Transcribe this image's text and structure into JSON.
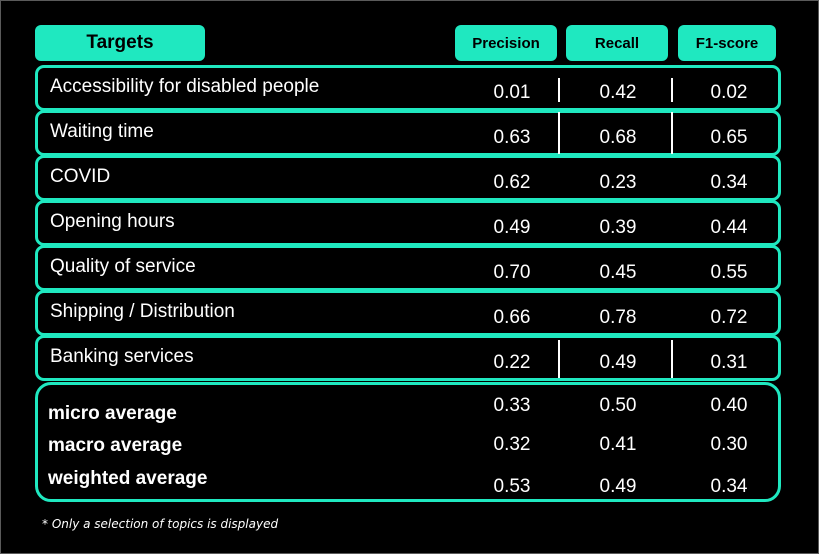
{
  "chart_data": {
    "type": "table",
    "columns": [
      "Targets",
      "Precision",
      "Recall",
      "F1-score"
    ],
    "rows": [
      {
        "target": "Accessibility for disabled people",
        "precision": "0.01",
        "recall": "0.42",
        "f1": "0.02"
      },
      {
        "target": "Waiting time",
        "precision": "0.63",
        "recall": "0.68",
        "f1": "0.65"
      },
      {
        "target": "COVID",
        "precision": "0.62",
        "recall": "0.23",
        "f1": "0.34"
      },
      {
        "target": "Opening hours",
        "precision": "0.49",
        "recall": "0.39",
        "f1": "0.44"
      },
      {
        "target": "Quality of service",
        "precision": "0.70",
        "recall": "0.45",
        "f1": "0.55"
      },
      {
        "target": "Shipping / Distribution",
        "precision": "0.66",
        "recall": "0.78",
        "f1": "0.72"
      },
      {
        "target": "Banking services",
        "precision": "0.22",
        "recall": "0.49",
        "f1": "0.31"
      }
    ],
    "averages": [
      {
        "label": "micro average",
        "precision": "0.33",
        "recall": "0.50",
        "f1": "0.40"
      },
      {
        "label": "macro average",
        "precision": "0.32",
        "recall": "0.41",
        "f1": "0.30"
      },
      {
        "label": "weighted average",
        "precision": "0.53",
        "recall": "0.49",
        "f1": "0.34"
      }
    ],
    "footnote": "* Only a selection of topics is displayed"
  },
  "colors": {
    "accent": "#1fe8c0",
    "background": "#000000",
    "text": "#ffffff"
  }
}
